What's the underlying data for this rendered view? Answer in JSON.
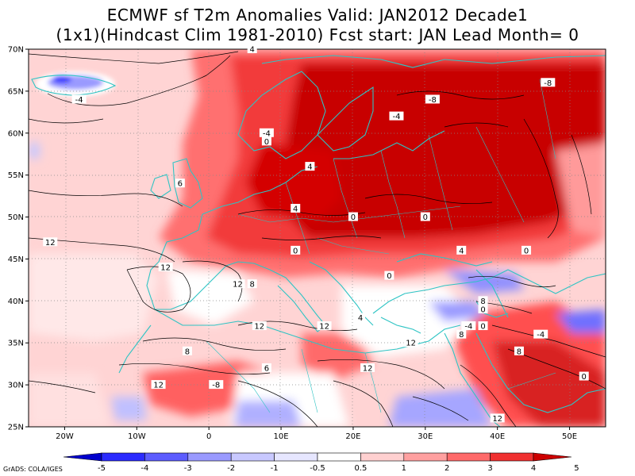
{
  "title": {
    "line1": "ECMWF sf T2m Anomalies Valid: JAN2012 Decade1",
    "line2": "(1x1)(Hindcast Clim 1981-2010) Fcst start: JAN  Lead Month= 0"
  },
  "map": {
    "lat_labels": [
      "70N",
      "65N",
      "60N",
      "55N",
      "50N",
      "45N",
      "40N",
      "35N",
      "30N",
      "25N"
    ],
    "lat_values": [
      70,
      65,
      60,
      55,
      50,
      45,
      40,
      35,
      30,
      25
    ],
    "lon_labels": [
      "20W",
      "10W",
      "0",
      "10E",
      "20E",
      "30E",
      "40E",
      "50E"
    ],
    "lon_values": [
      -20,
      -10,
      0,
      10,
      20,
      30,
      40,
      50
    ],
    "contour_labels": [
      {
        "text": "4",
        "lon": 6,
        "lat": 70
      },
      {
        "text": "-4",
        "lon": -18,
        "lat": 64
      },
      {
        "text": "-8",
        "lon": 31,
        "lat": 64
      },
      {
        "text": "-8",
        "lon": 47,
        "lat": 66
      },
      {
        "text": "-4",
        "lon": 26,
        "lat": 62
      },
      {
        "text": "-4",
        "lon": 8,
        "lat": 60
      },
      {
        "text": "0",
        "lon": 8,
        "lat": 59
      },
      {
        "text": "4",
        "lon": 14,
        "lat": 56
      },
      {
        "text": "6",
        "lon": -4,
        "lat": 54
      },
      {
        "text": "4",
        "lon": 12,
        "lat": 51
      },
      {
        "text": "0",
        "lon": 20,
        "lat": 50
      },
      {
        "text": "0",
        "lon": 30,
        "lat": 50
      },
      {
        "text": "12",
        "lon": -22,
        "lat": 47
      },
      {
        "text": "12",
        "lon": -6,
        "lat": 44
      },
      {
        "text": "0",
        "lon": 12,
        "lat": 46
      },
      {
        "text": "4",
        "lon": 35,
        "lat": 46
      },
      {
        "text": "0",
        "lon": 44,
        "lat": 46
      },
      {
        "text": "12",
        "lon": 4,
        "lat": 42
      },
      {
        "text": "8",
        "lon": 6,
        "lat": 42
      },
      {
        "text": "0",
        "lon": 25,
        "lat": 43
      },
      {
        "text": "8",
        "lon": 38,
        "lat": 40
      },
      {
        "text": "0",
        "lon": 38,
        "lat": 39
      },
      {
        "text": "-4",
        "lon": 36,
        "lat": 37
      },
      {
        "text": "0",
        "lon": 38,
        "lat": 37
      },
      {
        "text": "8",
        "lon": 35,
        "lat": 36
      },
      {
        "text": "4",
        "lon": 21,
        "lat": 38
      },
      {
        "text": "12",
        "lon": 16,
        "lat": 37
      },
      {
        "text": "12",
        "lon": 7,
        "lat": 37
      },
      {
        "text": "12",
        "lon": 28,
        "lat": 35
      },
      {
        "text": "-4",
        "lon": 46,
        "lat": 36
      },
      {
        "text": "8",
        "lon": -3,
        "lat": 34
      },
      {
        "text": "8",
        "lon": 43,
        "lat": 34
      },
      {
        "text": "0",
        "lon": 52,
        "lat": 31
      },
      {
        "text": "12",
        "lon": 22,
        "lat": 32
      },
      {
        "text": "6",
        "lon": 8,
        "lat": 32
      },
      {
        "text": "-8",
        "lon": 1,
        "lat": 30
      },
      {
        "text": "12",
        "lon": -7,
        "lat": 30
      },
      {
        "text": "12",
        "lon": 40,
        "lat": 26
      }
    ]
  },
  "colorbar": {
    "labels": [
      "-5",
      "-4",
      "-3",
      "-2",
      "-1",
      "-0.5",
      "0.5",
      "1",
      "2",
      "3",
      "4",
      "5"
    ],
    "colors": [
      "#0000cc",
      "#2b2bff",
      "#5c5cff",
      "#9a9aff",
      "#c8c8ff",
      "#e6e6ff",
      "#ffffff",
      "#ffd0d0",
      "#ffa0a0",
      "#ff6a6a",
      "#f03030",
      "#cc0000"
    ]
  },
  "credit": "GrADS: COLA/IGES"
}
